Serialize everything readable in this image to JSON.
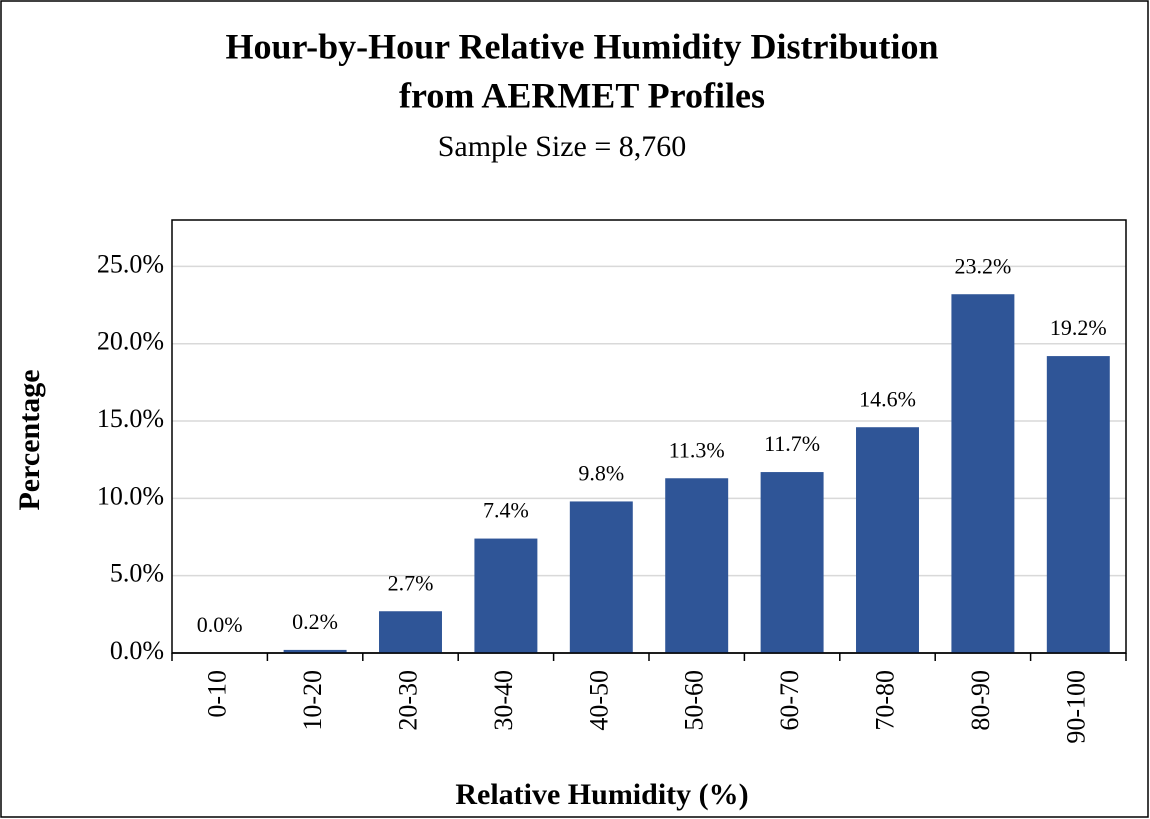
{
  "chart_data": {
    "type": "bar",
    "title": [
      "Hour-by-Hour Relative Humidity  Distribution",
      "from AERMET Profiles"
    ],
    "subtitle": "Sample  Size  = 8,760",
    "x_label": "Relative Humidity  (%)",
    "y_label": "Percentage",
    "categories": [
      "0-10",
      "10-20",
      "20-30",
      "30-40",
      "40-50",
      "50-60",
      "60-70",
      "70-80",
      "80-90",
      "90-100"
    ],
    "values": [
      0.0,
      0.2,
      2.7,
      7.4,
      9.8,
      11.3,
      11.7,
      14.6,
      23.2,
      19.2
    ],
    "value_labels": [
      "0.0%",
      "0.2%",
      "2.7%",
      "7.4%",
      "9.8%",
      "11.3%",
      "11.7%",
      "14.6%",
      "23.2%",
      "19.2%"
    ],
    "color": "#2f5597",
    "ylim": [
      0,
      28
    ],
    "yticks": [
      {
        "value": 0,
        "label": "0.0%"
      },
      {
        "value": 5,
        "label": "5.0%"
      },
      {
        "value": 10,
        "label": "10.0%"
      },
      {
        "value": 15,
        "label": "15.0%"
      },
      {
        "value": 20,
        "label": "20.0%"
      },
      {
        "value": 25,
        "label": "25.0%"
      }
    ],
    "grid": true
  }
}
